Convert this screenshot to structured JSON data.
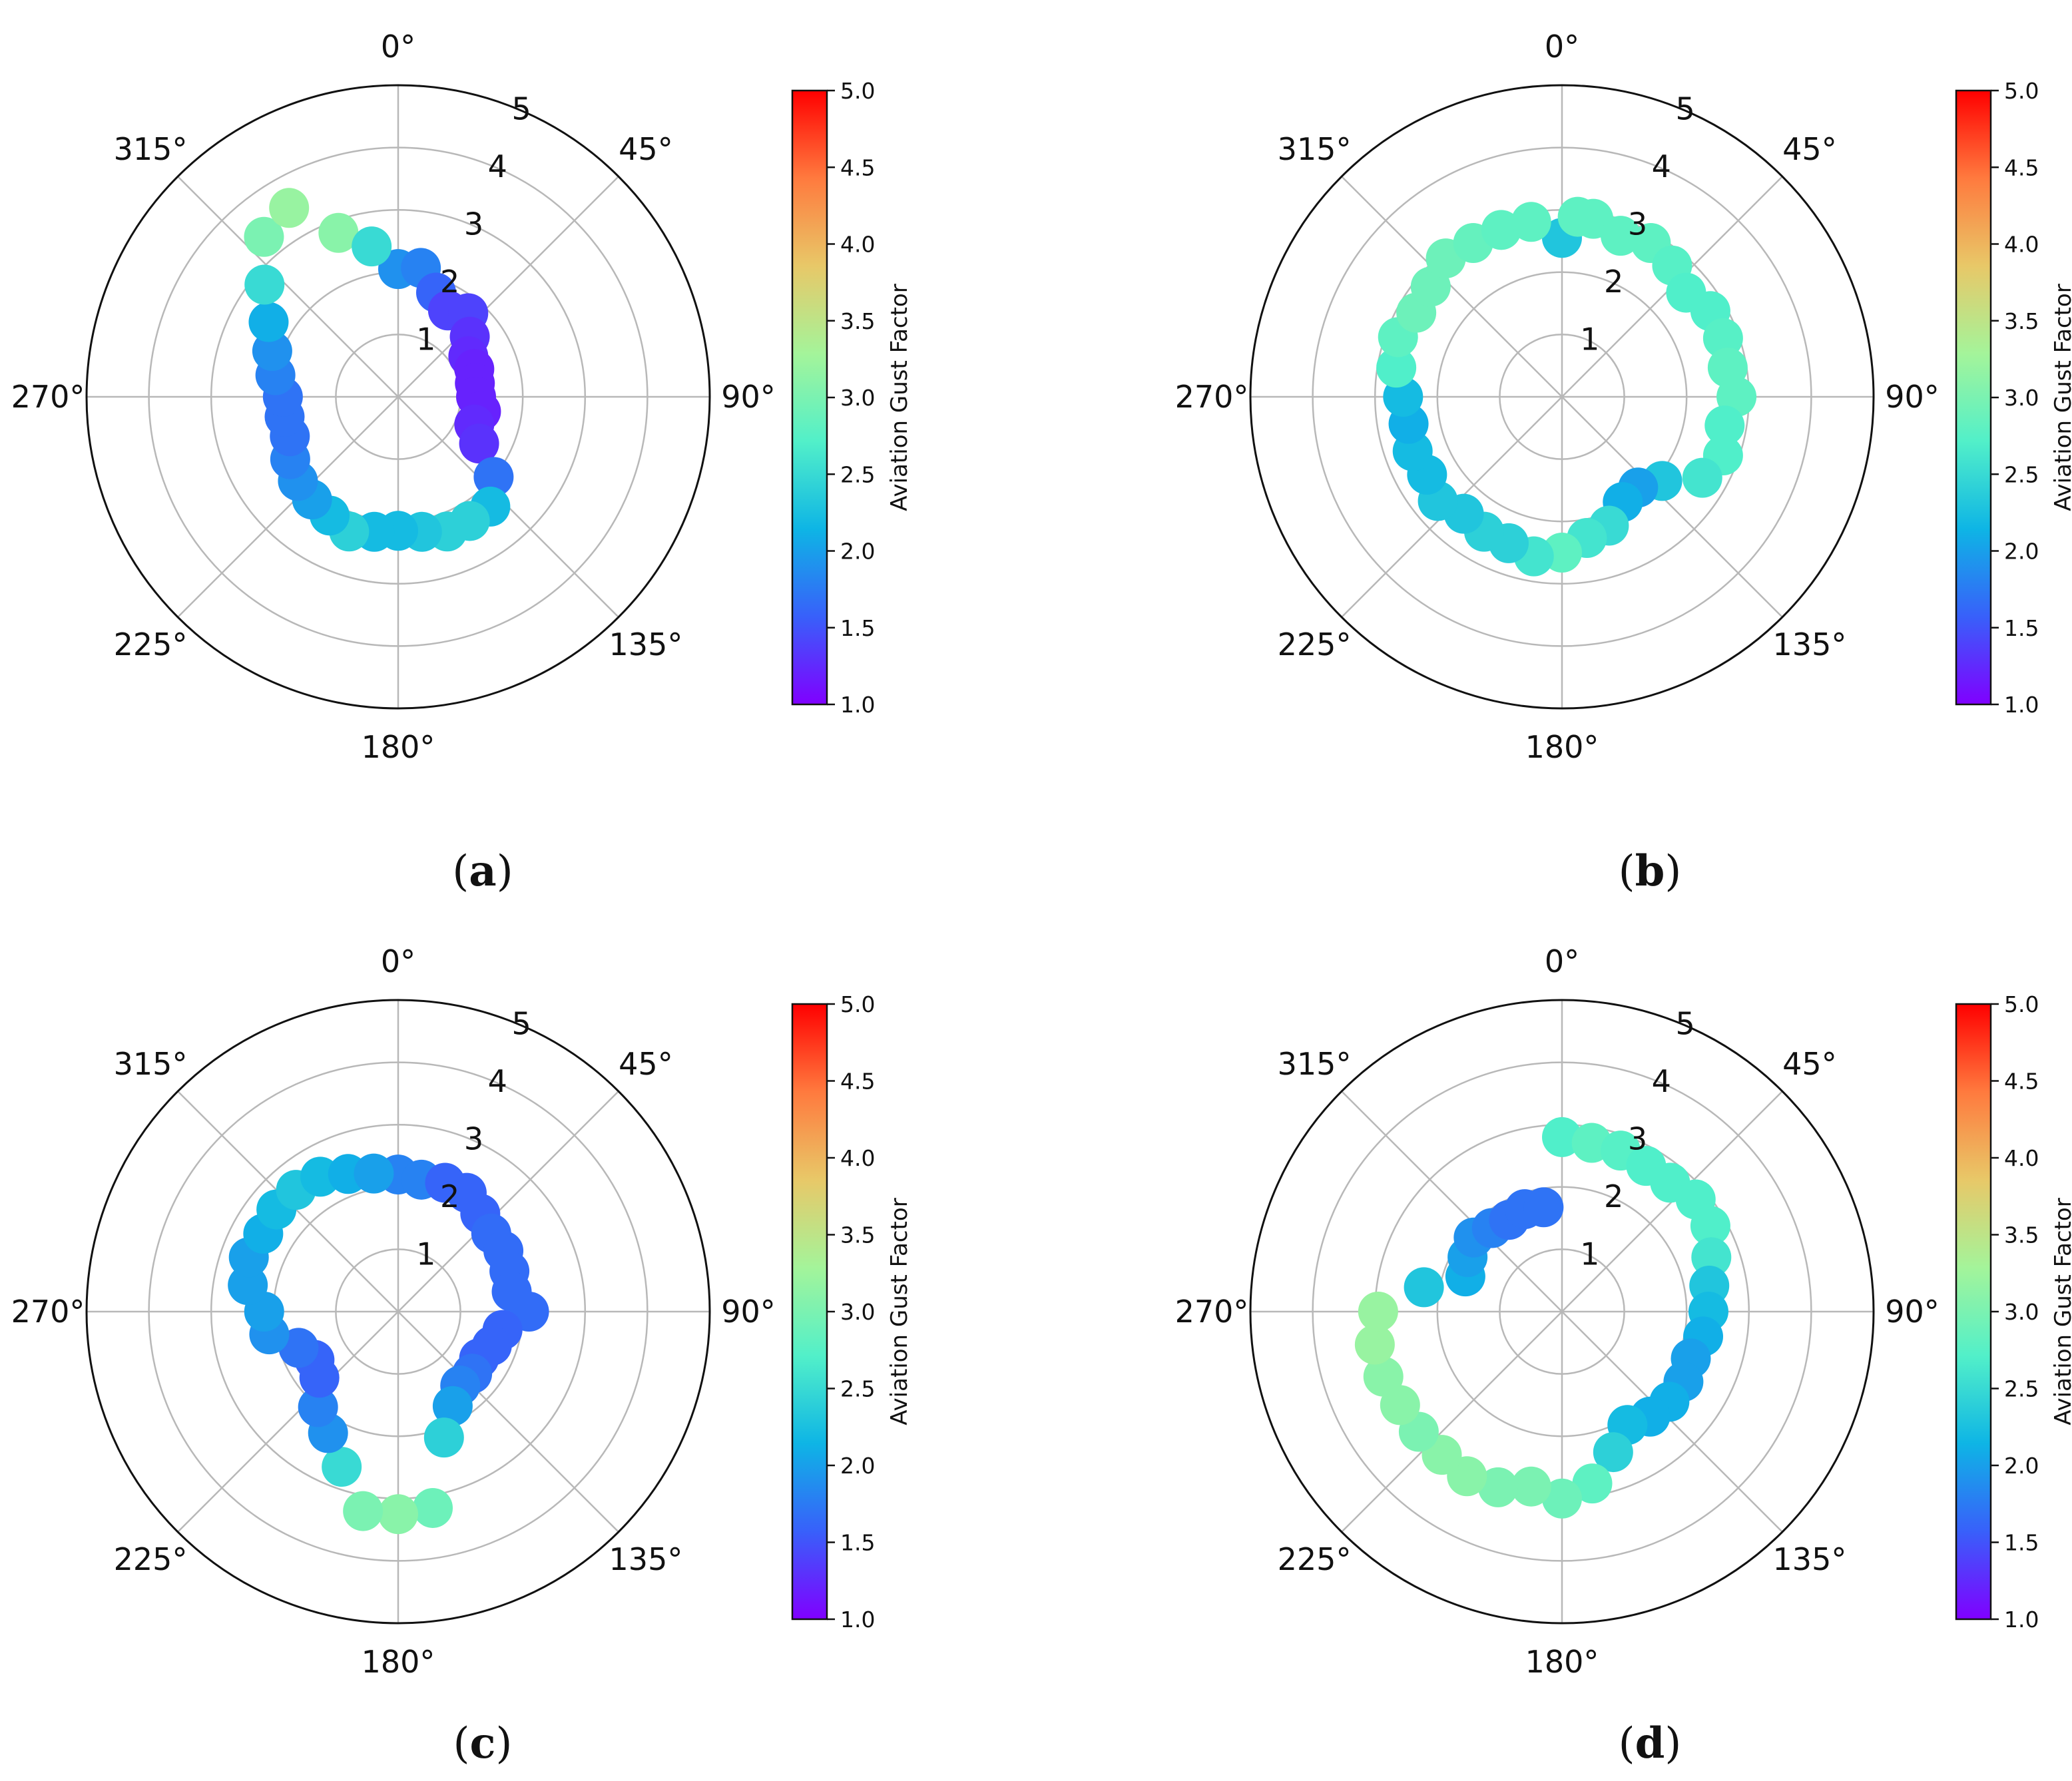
{
  "figure": {
    "colorbar": {
      "label": "Aviation Gust Factor",
      "min": 1.0,
      "max": 5.0,
      "ticks": [
        "1.0",
        "1.5",
        "2.0",
        "2.5",
        "3.0",
        "3.5",
        "4.0",
        "4.5",
        "5.0"
      ],
      "colormap": "rainbow",
      "colormap_stops": [
        "#8000ff",
        "#3860fa",
        "#0eb5e5",
        "#52f0c9",
        "#a4f49a",
        "#e8c868",
        "#ff7a3e",
        "#ff0000"
      ]
    },
    "polar_axis": {
      "angle_labels": [
        "0°",
        "45°",
        "90°",
        "135°",
        "180°",
        "225°",
        "270°",
        "315°"
      ],
      "radial_ticks": [
        "1",
        "2",
        "3",
        "4",
        "5"
      ],
      "rmax": 5,
      "direction": "clockwise",
      "zero_location": "north"
    }
  },
  "chart_data": [
    {
      "type": "scatter",
      "projection": "polar",
      "caption": "(a)",
      "theta_deg": [
        0,
        10,
        20,
        30,
        40,
        50,
        60,
        70,
        80,
        90,
        100,
        110,
        120,
        130,
        140,
        150,
        160,
        170,
        180,
        190,
        200,
        210,
        220,
        230,
        240,
        250,
        260,
        270,
        280,
        290,
        300,
        310,
        320,
        330,
        340,
        350
      ],
      "r": [
        2.05,
        2.1,
        1.78,
        1.6,
        1.75,
        1.5,
        1.3,
        1.3,
        1.25,
        1.25,
        1.35,
        1.3,
        1.5,
        2.0,
        2.3,
        2.3,
        2.3,
        2.2,
        2.15,
        2.2,
        2.3,
        2.2,
        2.15,
        2.1,
        2.0,
        1.85,
        1.85,
        1.85,
        2.0,
        2.15,
        2.4,
        2.8,
        3.35,
        3.5,
        2.8,
        2.45
      ],
      "gust_factor": [
        1.9,
        1.8,
        1.6,
        1.4,
        1.4,
        1.3,
        1.25,
        1.2,
        1.2,
        1.2,
        1.2,
        1.25,
        1.3,
        1.7,
        2.2,
        2.4,
        2.4,
        2.3,
        2.2,
        2.2,
        2.4,
        2.2,
        2.0,
        1.9,
        1.8,
        1.7,
        1.7,
        1.7,
        1.8,
        1.9,
        2.1,
        2.5,
        3.0,
        3.2,
        3.1,
        2.5
      ]
    },
    {
      "type": "scatter",
      "projection": "polar",
      "caption": "(b)",
      "theta_deg": [
        0,
        10,
        20,
        30,
        40,
        50,
        60,
        70,
        80,
        90,
        100,
        110,
        120,
        130,
        140,
        150,
        160,
        170,
        180,
        190,
        200,
        210,
        220,
        230,
        240,
        250,
        260,
        270,
        280,
        290,
        300,
        310,
        320,
        330,
        340,
        350,
        5
      ],
      "r": [
        2.55,
        2.9,
        2.75,
        2.85,
        2.75,
        2.6,
        2.75,
        2.75,
        2.7,
        2.8,
        2.65,
        2.75,
        2.6,
        2.1,
        1.9,
        1.95,
        2.2,
        2.3,
        2.5,
        2.6,
        2.5,
        2.5,
        2.45,
        2.6,
        2.5,
        2.55,
        2.5,
        2.55,
        2.7,
        2.8,
        2.7,
        2.75,
        2.9,
        2.85,
        2.85,
        2.85,
        2.9
      ],
      "gust_factor": [
        2.3,
        2.8,
        2.8,
        2.8,
        2.75,
        2.7,
        2.7,
        2.75,
        2.8,
        2.8,
        2.7,
        2.7,
        2.6,
        2.3,
        2.0,
        2.1,
        2.5,
        2.6,
        2.8,
        2.6,
        2.4,
        2.4,
        2.3,
        2.3,
        2.2,
        2.2,
        2.1,
        2.2,
        2.7,
        2.8,
        2.9,
        2.9,
        2.9,
        2.85,
        2.8,
        2.8,
        2.8
      ]
    },
    {
      "type": "scatter",
      "projection": "polar",
      "caption": "(c)",
      "theta_deg": [
        0,
        10,
        20,
        30,
        40,
        50,
        60,
        70,
        80,
        90,
        100,
        110,
        120,
        130,
        140,
        150,
        160,
        170,
        180,
        190,
        200,
        210,
        220,
        230,
        240,
        250,
        260,
        270,
        280,
        290,
        300,
        310,
        320,
        330,
        340,
        350
      ],
      "r": [
        2.2,
        2.15,
        2.2,
        2.2,
        2.05,
        1.95,
        1.95,
        1.9,
        1.85,
        2.1,
        1.7,
        1.6,
        1.5,
        1.55,
        1.55,
        1.75,
        2.15,
        3.2,
        3.25,
        3.25,
        2.65,
        2.25,
        2.0,
        1.65,
        1.55,
        1.7,
        2.1,
        2.15,
        2.45,
        2.55,
        2.5,
        2.55,
        2.55,
        2.5,
        2.35,
        2.25
      ],
      "gust_factor": [
        1.8,
        1.8,
        1.6,
        1.6,
        1.6,
        1.65,
        1.65,
        1.65,
        1.65,
        1.65,
        1.6,
        1.6,
        1.6,
        1.7,
        1.8,
        2.0,
        2.4,
        2.9,
        3.1,
        3.0,
        2.5,
        1.9,
        1.8,
        1.6,
        1.6,
        1.7,
        1.9,
        2.0,
        2.0,
        2.0,
        2.1,
        2.2,
        2.3,
        2.2,
        2.1,
        2.0
      ]
    },
    {
      "type": "scatter",
      "projection": "polar",
      "caption": "(d)",
      "theta_deg": [
        0,
        10,
        20,
        30,
        40,
        50,
        60,
        70,
        80,
        90,
        100,
        110,
        120,
        130,
        140,
        150,
        160,
        170,
        180,
        190,
        200,
        210,
        220,
        230,
        240,
        250,
        260,
        270,
        280,
        290,
        300,
        310,
        320,
        330,
        340,
        350
      ],
      "r": [
        2.8,
        2.75,
        2.75,
        2.7,
        2.7,
        2.8,
        2.75,
        2.55,
        2.4,
        2.35,
        2.3,
        2.2,
        2.25,
        2.25,
        2.2,
        2.1,
        2.4,
        2.8,
        3.0,
        2.85,
        3.0,
        3.05,
        3.0,
        3.0,
        3.0,
        3.05,
        3.05,
        2.95,
        2.25,
        1.65,
        1.75,
        1.85,
        1.75,
        1.7,
        1.75,
        1.7
      ],
      "gust_factor": [
        2.7,
        2.8,
        2.75,
        2.7,
        2.7,
        2.7,
        2.7,
        2.6,
        2.3,
        2.2,
        2.1,
        2.0,
        2.0,
        2.1,
        2.1,
        2.2,
        2.4,
        2.8,
        2.9,
        3.0,
        3.0,
        3.1,
        3.1,
        3.0,
        3.1,
        3.1,
        3.2,
        3.2,
        2.3,
        2.1,
        2.0,
        1.9,
        1.8,
        1.7,
        1.7,
        1.7
      ]
    }
  ]
}
